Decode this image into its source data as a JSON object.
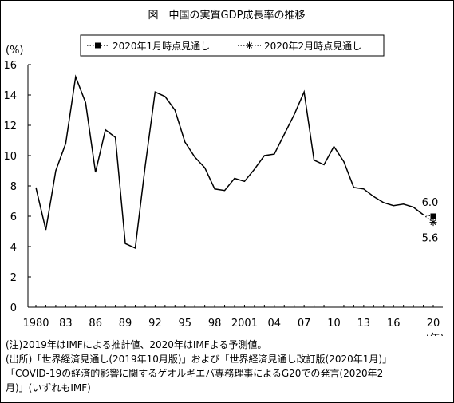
{
  "chart_data": {
    "type": "line",
    "title": "図　中国の実質GDP成長率の推移",
    "ylabel": "(%)",
    "xlabel": "(年)",
    "ylim": [
      0,
      16
    ],
    "yticks": [
      0,
      2,
      4,
      6,
      8,
      10,
      12,
      14,
      16
    ],
    "xlim": [
      1980,
      2020
    ],
    "xtick_labels": [
      {
        "year": 1980,
        "label": "1980"
      },
      {
        "year": 1983,
        "label": "83"
      },
      {
        "year": 1986,
        "label": "86"
      },
      {
        "year": 1989,
        "label": "89"
      },
      {
        "year": 1992,
        "label": "92"
      },
      {
        "year": 1995,
        "label": "95"
      },
      {
        "year": 1998,
        "label": "98"
      },
      {
        "year": 2001,
        "label": "2001"
      },
      {
        "year": 2004,
        "label": "04"
      },
      {
        "year": 2007,
        "label": "07"
      },
      {
        "year": 2010,
        "label": "10"
      },
      {
        "year": 2013,
        "label": "13"
      },
      {
        "year": 2016,
        "label": "16"
      },
      {
        "year": 2020,
        "label": "20"
      }
    ],
    "grid": false,
    "legend_position": "top",
    "series": [
      {
        "x": [
          1980,
          1981,
          1982,
          1983,
          1984,
          1985,
          1986,
          1987,
          1988,
          1989,
          1990,
          1991,
          1992,
          1993,
          1994,
          1995,
          1996,
          1997,
          1998,
          1999,
          2000,
          2001,
          2002,
          2003,
          2004,
          2005,
          2006,
          2007,
          2008,
          2009,
          2010,
          2011,
          2012,
          2013,
          2014,
          2015,
          2016,
          2017,
          2018,
          2019
        ],
        "values": [
          7.9,
          5.1,
          9.0,
          10.8,
          15.2,
          13.5,
          8.9,
          11.7,
          11.2,
          4.2,
          3.9,
          9.3,
          14.2,
          13.9,
          13.0,
          10.9,
          9.9,
          9.2,
          7.8,
          7.7,
          8.5,
          8.3,
          9.1,
          10.0,
          10.1,
          11.4,
          12.7,
          14.2,
          9.7,
          9.4,
          10.6,
          9.6,
          7.9,
          7.8,
          7.3,
          6.9,
          6.7,
          6.8,
          6.6,
          6.1
        ],
        "color": "#000000"
      },
      {
        "name": "2020年1月時点見通し",
        "x": [
          2020
        ],
        "values": [
          6.0
        ],
        "marker": "square",
        "color": "#000000",
        "label": "6.0"
      },
      {
        "name": "2020年2月時点見通し",
        "x": [
          2020
        ],
        "values": [
          5.6
        ],
        "marker": "asterisk",
        "color": "#000000",
        "label": "5.6"
      }
    ]
  },
  "notes": [
    "(注)2019年はIMFによる推計値、2020年はIMFよる予測値。",
    "(出所)「世界経済見通し(2019年10月版)」および「世界経済見通し改訂版(2020年1月)」",
    "「COVID-19の経済的影響に関するゲオルギエバ専務理事によるG20での発言(2020年2",
    "月)」(いずれもIMF)"
  ]
}
